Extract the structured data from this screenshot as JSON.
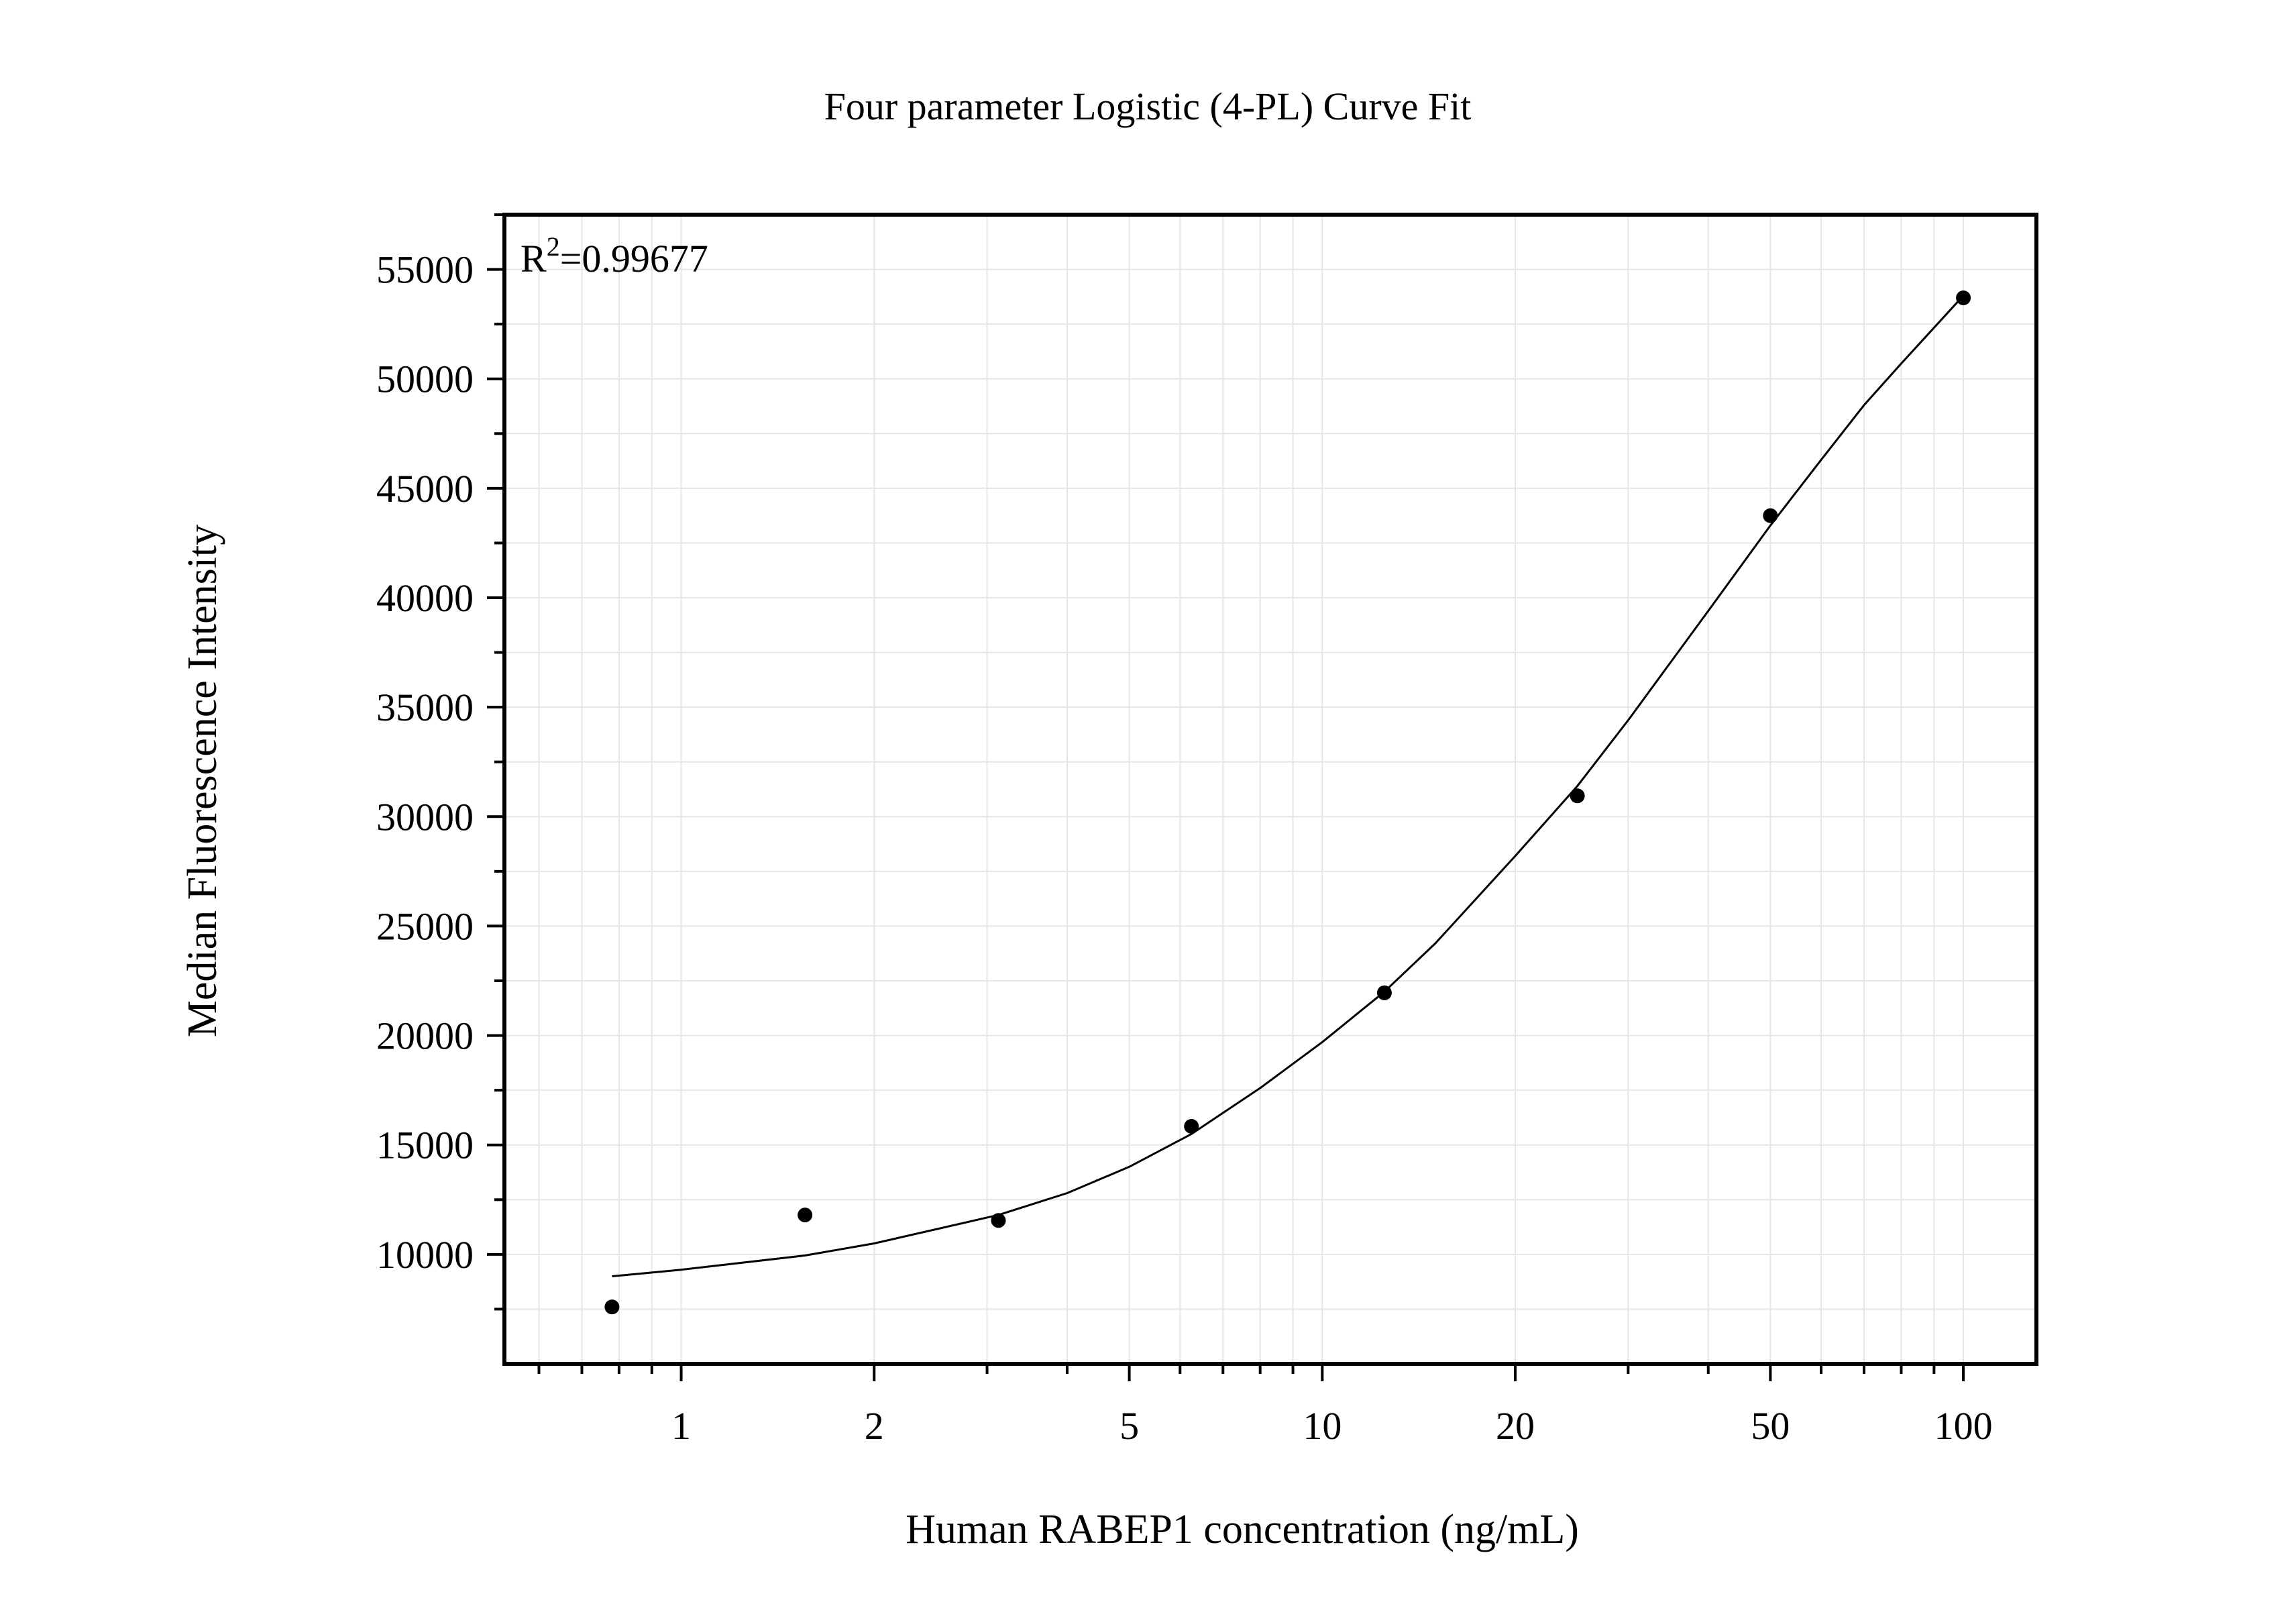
{
  "chart_data": {
    "type": "scatter",
    "title": "Four parameter Logistic (4-PL) Curve Fit",
    "xlabel": "Human RABEP1 concentration (ng/mL)",
    "ylabel": "Median Fluorescence Intensity",
    "x_scale": "log",
    "xlim": [
      0.53,
      130
    ],
    "ylim": [
      5000,
      57500
    ],
    "x_ticks": [
      1,
      2,
      5,
      10,
      20,
      50,
      100
    ],
    "x_tick_labels": [
      "1",
      "2",
      "5",
      "10",
      "20",
      "50",
      "100"
    ],
    "y_ticks": [
      10000,
      15000,
      20000,
      25000,
      30000,
      35000,
      40000,
      45000,
      50000,
      55000
    ],
    "y_tick_labels": [
      "10000",
      "15000",
      "20000",
      "25000",
      "30000",
      "35000",
      "40000",
      "45000",
      "50000",
      "55000"
    ],
    "grid": true,
    "annotation": {
      "base": "R",
      "sup": "2",
      "value": "=0.99677",
      "position": "top-left"
    },
    "series": [
      {
        "type": "scatter",
        "x": [
          0.78,
          1.56,
          3.125,
          6.25,
          12.5,
          25,
          50,
          100
        ],
        "y": [
          7600,
          11800,
          11550,
          15850,
          21950,
          30950,
          43750,
          53700
        ],
        "color": "#000000"
      },
      {
        "type": "line",
        "x": [
          0.78,
          1.0,
          1.56,
          2.0,
          3.125,
          4.0,
          5.0,
          6.25,
          8.0,
          10.0,
          12.5,
          15.0,
          20.0,
          25.0,
          30.0,
          40.0,
          50.0,
          60.0,
          70.0,
          80.0,
          100.0
        ],
        "y": [
          9000,
          9300,
          9950,
          10500,
          11800,
          12800,
          14000,
          15500,
          17600,
          19700,
          22000,
          24200,
          28200,
          31400,
          34400,
          39400,
          43300,
          46300,
          48800,
          50700,
          53800
        ],
        "color": "#000000"
      }
    ]
  }
}
